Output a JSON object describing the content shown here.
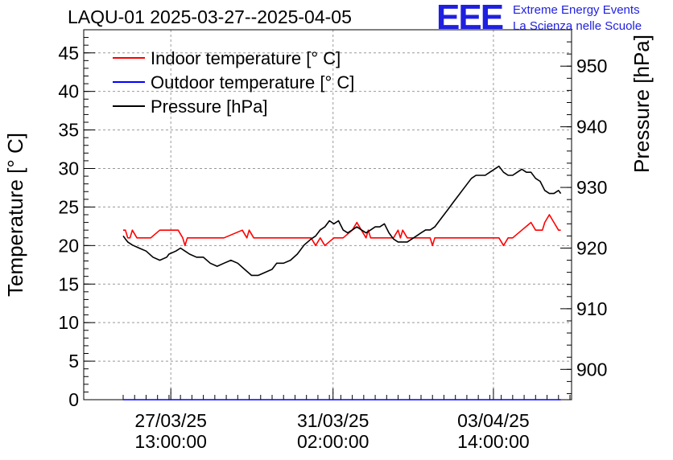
{
  "title": "LAQU-01 2025-03-27--2025-04-05",
  "logo": {
    "mark": "EEE",
    "line1": "Extreme Energy Events",
    "line2": "La Scienza nelle Scuole",
    "color": "#1f1fe0"
  },
  "chart_data": {
    "type": "line",
    "xlabel": "",
    "ylabel_left": "Temperature [° C]",
    "ylabel_right": "Pressure [hPa]",
    "ylim_left": [
      0,
      48
    ],
    "ylim_right": [
      895,
      956
    ],
    "xlim": [
      0,
      9.75
    ],
    "yticks_left": [
      "0",
      "5",
      "10",
      "15",
      "20",
      "25",
      "30",
      "35",
      "40",
      "45"
    ],
    "yticks_right": [
      "900",
      "910",
      "920",
      "930",
      "940",
      "950"
    ],
    "xticks": [
      {
        "x": 1.04,
        "line1": "27/03/25",
        "line2": "13:00:00"
      },
      {
        "x": 4.58,
        "line1": "31/03/25",
        "line2": "02:00:00"
      },
      {
        "x": 8.08,
        "line1": "03/04/25",
        "line2": "14:00:00"
      }
    ],
    "grid": true,
    "legend_position": "top-left",
    "series": [
      {
        "name": "Indoor temperature [° C]",
        "axis": "left",
        "color": "#ff0000",
        "x": [
          0,
          0.05,
          0.1,
          0.15,
          0.2,
          0.3,
          0.45,
          0.6,
          0.8,
          0.9,
          1.2,
          1.3,
          1.35,
          1.4,
          1.45,
          1.5,
          1.7,
          1.9,
          2.2,
          2.6,
          2.7,
          2.75,
          2.85,
          3.2,
          3.5,
          3.6,
          3.9,
          4.1,
          4.2,
          4.3,
          4.4,
          4.6,
          4.8,
          5.0,
          5.1,
          5.2,
          5.3,
          5.35,
          5.4,
          5.6,
          5.9,
          6.0,
          6.05,
          6.1,
          6.2,
          6.5,
          6.7,
          6.75,
          6.8,
          7.2,
          7.4,
          7.5,
          7.6,
          7.7,
          7.8,
          8.0,
          8.1,
          8.2,
          8.3,
          8.4,
          8.5,
          8.7,
          8.9,
          9.0,
          9.1,
          9.15,
          9.2,
          9.3,
          9.4,
          9.5,
          9.55
        ],
        "values": [
          22,
          22,
          21,
          21,
          22,
          21,
          21,
          21,
          22,
          22,
          22,
          21,
          20,
          21,
          21,
          21,
          21,
          21,
          21,
          22,
          21,
          22,
          21,
          21,
          21,
          21,
          21,
          21,
          20,
          21,
          20,
          21,
          21,
          22,
          23,
          22,
          21,
          22,
          21,
          21,
          21,
          22,
          21,
          22,
          21,
          21,
          21,
          20,
          21,
          21,
          21,
          21,
          21,
          21,
          21,
          21,
          21,
          21,
          20,
          21,
          21,
          22,
          23,
          22,
          22,
          22,
          23,
          24,
          23,
          22,
          22
        ]
      },
      {
        "name": "Outdoor temperature [° C]",
        "axis": "left",
        "color": "#0000ff",
        "x": [
          0,
          9.55
        ],
        "values": [
          0,
          0
        ]
      },
      {
        "name": "Pressure [hPa]",
        "axis": "right",
        "color": "#000000",
        "x": [
          0,
          0.05,
          0.1,
          0.2,
          0.35,
          0.5,
          0.65,
          0.8,
          0.95,
          1.0,
          1.15,
          1.25,
          1.35,
          1.45,
          1.6,
          1.75,
          1.9,
          2.05,
          2.2,
          2.35,
          2.5,
          2.65,
          2.8,
          2.95,
          3.1,
          3.25,
          3.35,
          3.5,
          3.65,
          3.8,
          3.95,
          4.1,
          4.2,
          4.3,
          4.4,
          4.5,
          4.6,
          4.7,
          4.8,
          4.9,
          5.0,
          5.1,
          5.2,
          5.3,
          5.4,
          5.5,
          5.6,
          5.7,
          5.8,
          5.9,
          6.0,
          6.1,
          6.2,
          6.3,
          6.4,
          6.5,
          6.6,
          6.7,
          6.8,
          6.9,
          7.0,
          7.1,
          7.2,
          7.3,
          7.4,
          7.5,
          7.6,
          7.7,
          7.8,
          7.9,
          8.0,
          8.1,
          8.2,
          8.3,
          8.4,
          8.5,
          8.6,
          8.7,
          8.8,
          8.9,
          9.0,
          9.1,
          9.2,
          9.3,
          9.4,
          9.5,
          9.55
        ],
        "values": [
          922,
          921.5,
          921,
          920.5,
          920,
          919.5,
          918.5,
          918,
          918.5,
          919,
          919.5,
          920,
          919.5,
          919,
          918.5,
          918.5,
          917.5,
          917,
          917.5,
          918,
          917.5,
          916.5,
          915.5,
          915.5,
          916,
          916.5,
          917.5,
          917.5,
          918,
          919,
          920.5,
          921.5,
          922,
          923,
          923.5,
          924.5,
          924,
          924.5,
          923,
          922.5,
          923,
          923.5,
          923,
          922.5,
          923,
          923.5,
          923.5,
          924,
          922.5,
          921.5,
          921,
          921,
          921,
          921.5,
          922,
          922.5,
          923,
          923,
          923.5,
          924.5,
          925.5,
          926.5,
          927.5,
          928.5,
          929.5,
          930.5,
          931.5,
          932,
          932,
          932,
          932.5,
          933,
          933.5,
          932.5,
          932,
          932,
          932.5,
          933,
          932.5,
          932.5,
          931.5,
          931,
          929.5,
          929,
          929,
          929.5,
          929
        ]
      }
    ]
  }
}
